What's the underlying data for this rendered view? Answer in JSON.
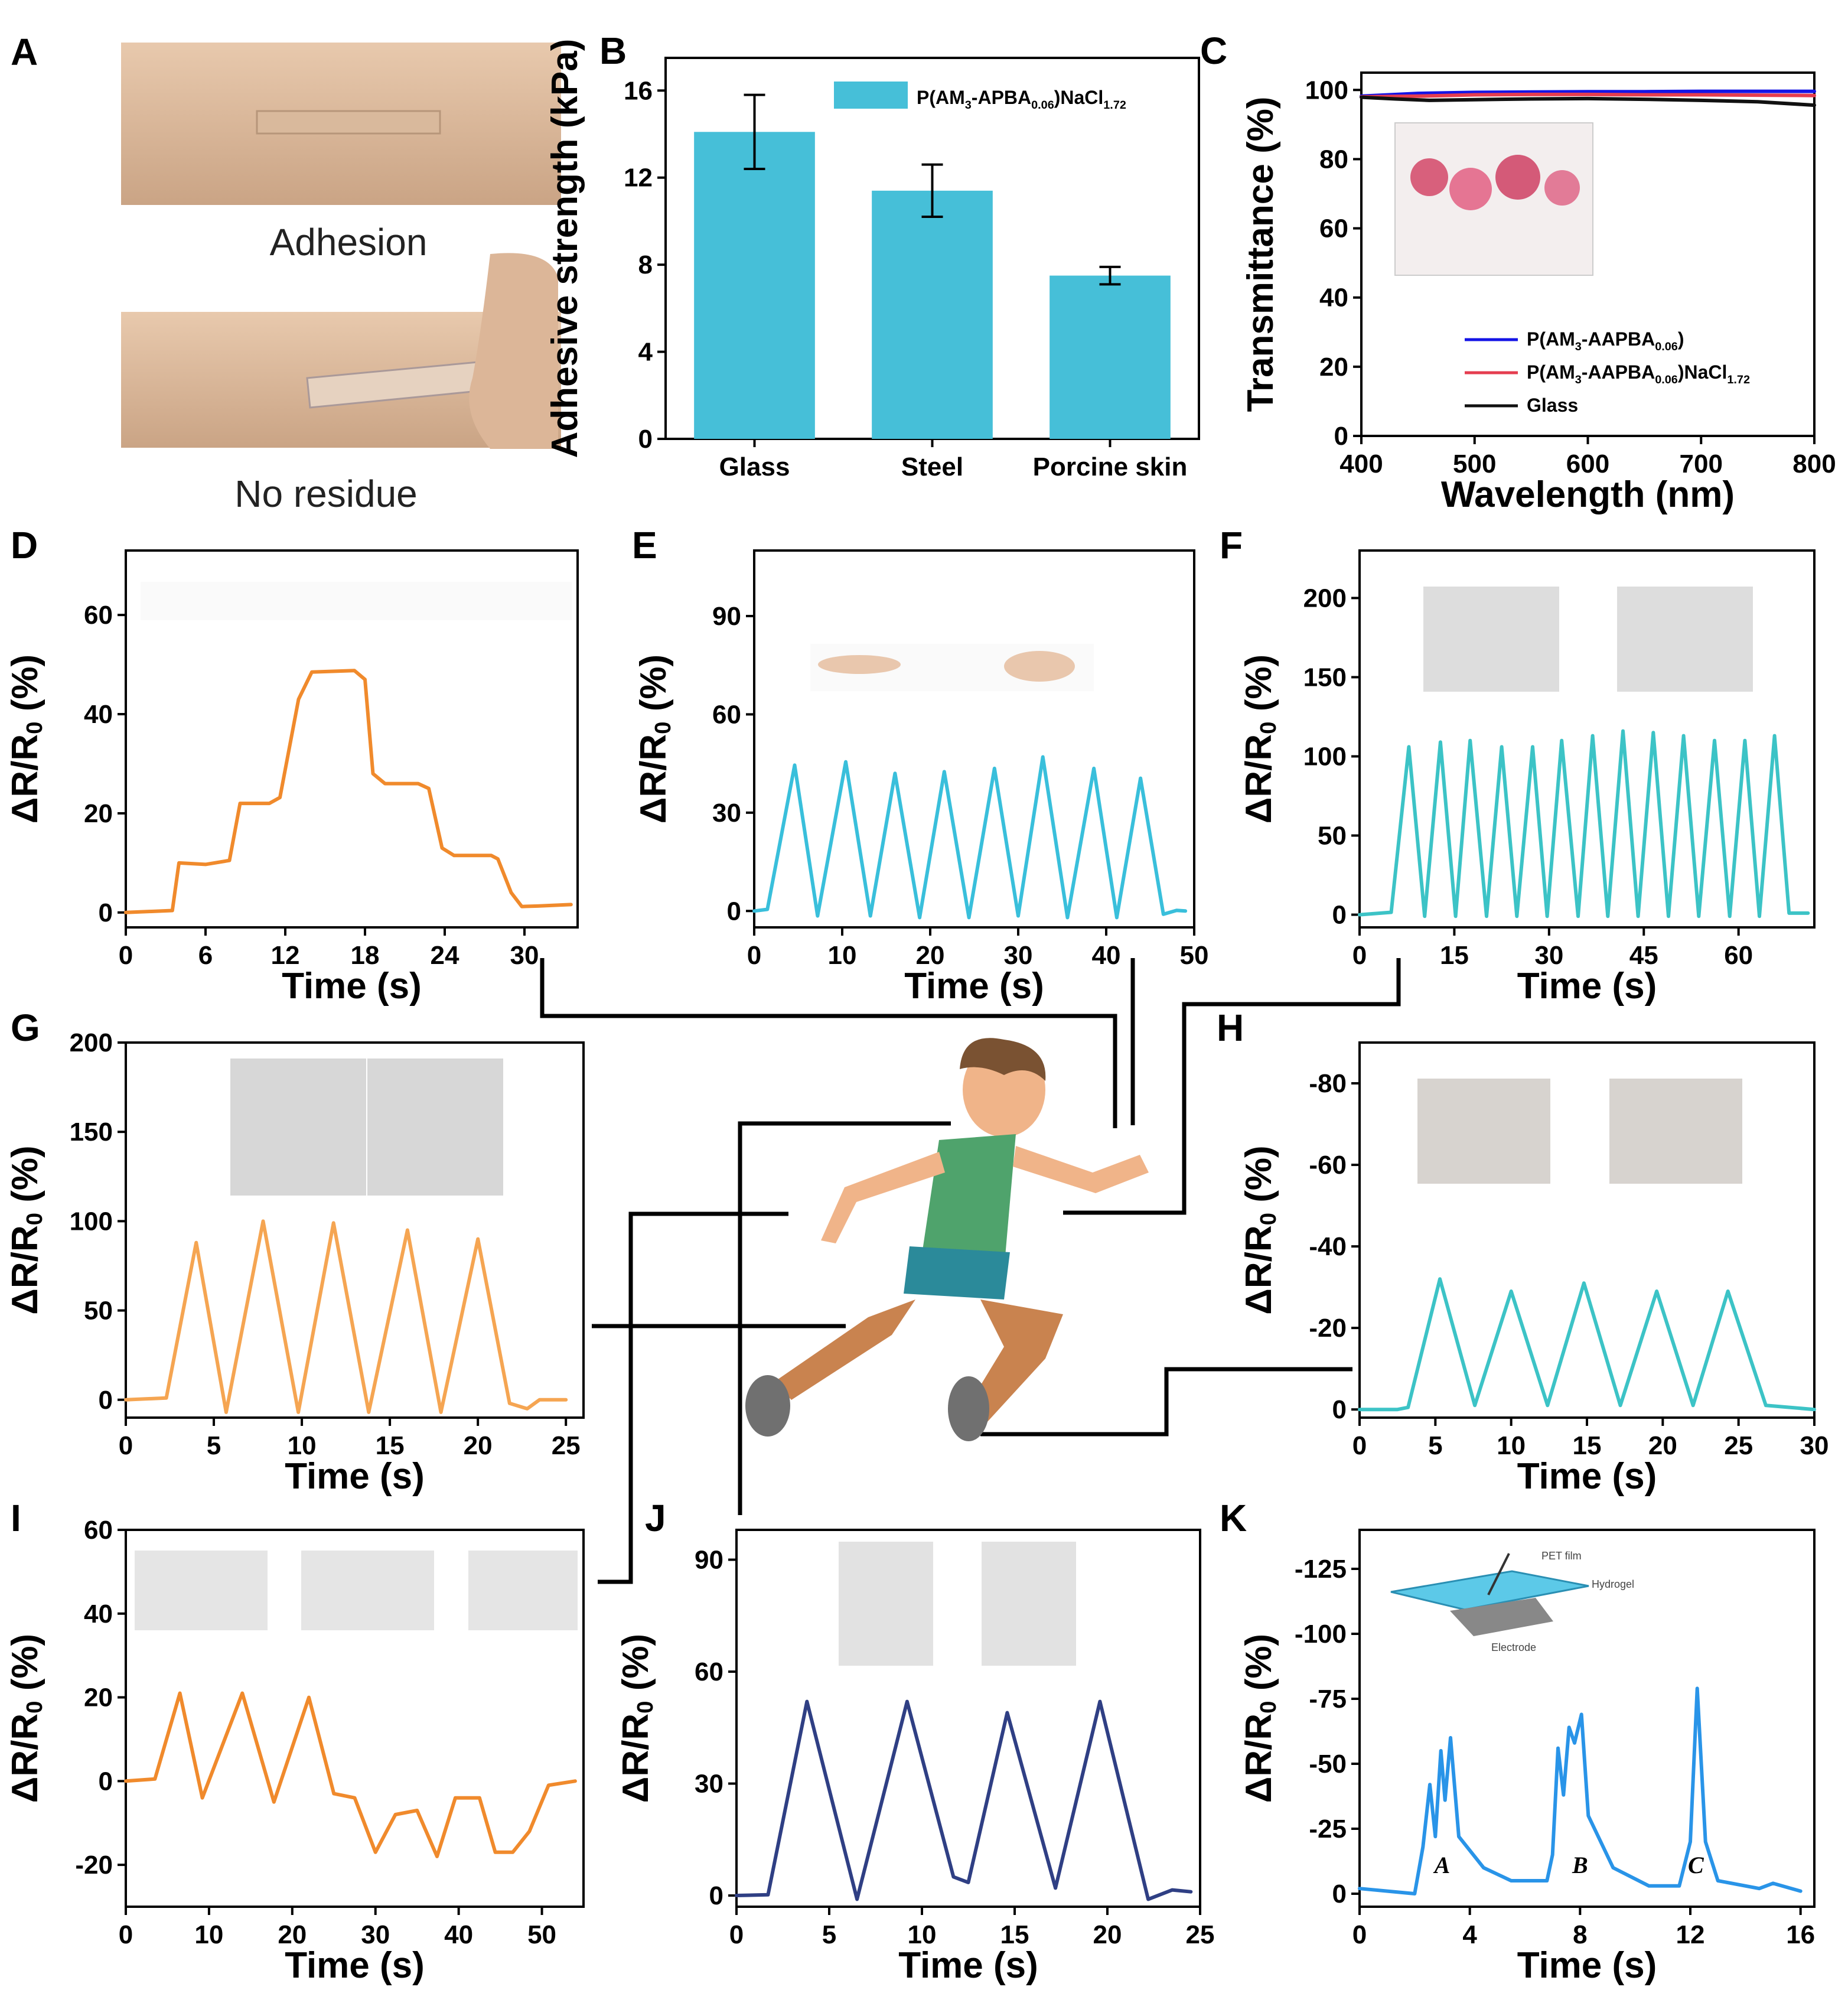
{
  "colors": {
    "orange": "#F08A2C",
    "orange_light": "#F5A552",
    "cyan": "#39BFDB",
    "teal": "#3CC3C6",
    "navy": "#2F3F84",
    "blue": "#2994E8",
    "bar": "#46BFD8",
    "line_blue": "#1414E6",
    "line_red": "#E53D4F",
    "line_black": "#111111"
  },
  "panel_A": {
    "letter": "A",
    "caption_top": "Adhesion",
    "caption_bottom": "No residue"
  },
  "chart_data": [
    {
      "panel": "B",
      "type": "bar",
      "categories": [
        "Glass",
        "Steel",
        "Porcine skin"
      ],
      "values": [
        14.1,
        11.4,
        7.5
      ],
      "errors": [
        1.7,
        1.2,
        0.4
      ],
      "ylabel": "Adhesive strength (kPa)",
      "xlabel": "",
      "ylim": [
        0,
        17.5
      ],
      "yticks": [
        0,
        4,
        8,
        12,
        16
      ],
      "legend": [
        "P(AM",
        "3",
        "-APBA",
        "0.06",
        ")NaCl",
        "1.72"
      ]
    },
    {
      "panel": "C",
      "type": "line",
      "xlabel": "Wavelength (nm)",
      "ylabel": "Transmittance (%)",
      "xlim": [
        400,
        800
      ],
      "ylim": [
        0,
        105
      ],
      "xticks": [
        400,
        500,
        600,
        700,
        800
      ],
      "yticks": [
        0,
        20,
        40,
        60,
        80,
        100
      ],
      "series": [
        {
          "name": "P(AM3-AAPBA0.06)",
          "label": [
            "P(AM",
            "3",
            "-AAPBA",
            "0.06",
            ")",
            ""
          ],
          "color": "#1414E6",
          "points": [
            [
              400,
              98.2
            ],
            [
              450,
              99.0
            ],
            [
              500,
              99.3
            ],
            [
              550,
              99.4
            ],
            [
              600,
              99.5
            ],
            [
              650,
              99.5
            ],
            [
              700,
              99.6
            ],
            [
              750,
              99.6
            ],
            [
              800,
              99.6
            ]
          ]
        },
        {
          "name": "P(AM3-AAPBA0.06)NaCl1.72",
          "label": [
            "P(AM",
            "3",
            "-AAPBA",
            "0.06",
            ")NaCl",
            "1.72"
          ],
          "color": "#E53D4F",
          "points": [
            [
              400,
              98.0
            ],
            [
              450,
              98.2
            ],
            [
              500,
              98.6
            ],
            [
              550,
              98.7
            ],
            [
              600,
              98.7
            ],
            [
              650,
              98.6
            ],
            [
              700,
              98.6
            ],
            [
              750,
              98.5
            ],
            [
              800,
              98.4
            ]
          ]
        },
        {
          "name": "Glass",
          "label": [
            "Glass",
            "",
            "",
            "",
            "",
            ""
          ],
          "color": "#111111",
          "points": [
            [
              400,
              97.9
            ],
            [
              430,
              97.4
            ],
            [
              460,
              97.0
            ],
            [
              500,
              97.2
            ],
            [
              550,
              97.4
            ],
            [
              600,
              97.5
            ],
            [
              650,
              97.3
            ],
            [
              700,
              97.0
            ],
            [
              750,
              96.6
            ],
            [
              800,
              95.6
            ]
          ]
        }
      ]
    },
    {
      "panel": "D",
      "type": "line",
      "xlabel": "Time (s)",
      "ylabel": "ΔR/R0 (%)",
      "xlim": [
        0,
        34
      ],
      "ylim": [
        -3,
        73
      ],
      "xticks": [
        0,
        6,
        12,
        18,
        24,
        30
      ],
      "yticks": [
        0,
        20,
        40,
        60
      ],
      "series": [
        {
          "name": "D",
          "color": "#F08A2C",
          "points": [
            [
              0,
              0
            ],
            [
              3.5,
              0.4
            ],
            [
              4,
              10
            ],
            [
              6,
              9.7
            ],
            [
              7.8,
              10.5
            ],
            [
              8.6,
              22
            ],
            [
              10.8,
              22
            ],
            [
              11.6,
              23.2
            ],
            [
              13,
              43
            ],
            [
              14,
              48.5
            ],
            [
              17.2,
              48.8
            ],
            [
              18,
              47
            ],
            [
              18.6,
              28
            ],
            [
              19.5,
              26
            ],
            [
              22,
              26
            ],
            [
              22.8,
              25
            ],
            [
              23.8,
              13
            ],
            [
              24.7,
              11.5
            ],
            [
              27.5,
              11.5
            ],
            [
              28,
              10.8
            ],
            [
              29,
              4
            ],
            [
              29.8,
              1.2
            ],
            [
              31,
              1.3
            ],
            [
              33.5,
              1.6
            ]
          ]
        }
      ]
    },
    {
      "panel": "E",
      "type": "line",
      "xlabel": "Time (s)",
      "ylabel": "ΔR/R0 (%)",
      "xlim": [
        0,
        50
      ],
      "ylim": [
        -5,
        110
      ],
      "xticks": [
        0,
        10,
        20,
        30,
        40,
        50
      ],
      "yticks": [
        0,
        30,
        60,
        90
      ],
      "series": [
        {
          "name": "E",
          "color": "#39BFDB",
          "points": [
            [
              0,
              0
            ],
            [
              1.5,
              0.5
            ],
            [
              4.6,
              44.5
            ],
            [
              7.2,
              -1.5
            ],
            [
              10.4,
              45.5
            ],
            [
              13.2,
              -1.5
            ],
            [
              16,
              42
            ],
            [
              18.8,
              -2
            ],
            [
              21.6,
              42.5
            ],
            [
              24.4,
              -2
            ],
            [
              27.3,
              43.5
            ],
            [
              30,
              -1.5
            ],
            [
              32.8,
              47
            ],
            [
              35.6,
              -2
            ],
            [
              38.6,
              43.5
            ],
            [
              41.2,
              -2
            ],
            [
              43.9,
              40.5
            ],
            [
              46.5,
              -1
            ],
            [
              48,
              0.2
            ],
            [
              49,
              0
            ]
          ]
        }
      ]
    },
    {
      "panel": "F",
      "type": "line",
      "xlabel": "Time (s)",
      "ylabel": "ΔR/R0 (%)",
      "xlim": [
        0,
        72
      ],
      "ylim": [
        -8,
        230
      ],
      "xticks": [
        0,
        15,
        30,
        45,
        60
      ],
      "yticks": [
        0,
        50,
        100,
        150,
        200
      ],
      "series": [
        {
          "name": "F",
          "color": "#3CC3C6",
          "points": [
            [
              0,
              0
            ],
            [
              5,
              1.5
            ],
            [
              7.8,
              106
            ],
            [
              10.3,
              -1
            ],
            [
              12.8,
              109
            ],
            [
              15.2,
              -1
            ],
            [
              17.5,
              110
            ],
            [
              20.1,
              -1
            ],
            [
              22.5,
              106
            ],
            [
              24.9,
              -1
            ],
            [
              27.4,
              106
            ],
            [
              29.7,
              -1
            ],
            [
              32,
              110
            ],
            [
              34.6,
              -1
            ],
            [
              36.9,
              113
            ],
            [
              39.3,
              -1
            ],
            [
              41.7,
              116
            ],
            [
              44.1,
              -1
            ],
            [
              46.5,
              115
            ],
            [
              48.9,
              -1
            ],
            [
              51.3,
              113
            ],
            [
              53.7,
              -1
            ],
            [
              56.2,
              110
            ],
            [
              58.6,
              -1
            ],
            [
              61,
              110
            ],
            [
              63.3,
              -1
            ],
            [
              65.7,
              113
            ],
            [
              68,
              1
            ],
            [
              71,
              1
            ]
          ]
        }
      ]
    },
    {
      "panel": "G",
      "type": "line",
      "xlabel": "Time (s)",
      "ylabel": "ΔR/R0 (%)",
      "xlim": [
        0,
        26
      ],
      "ylim": [
        -10,
        200
      ],
      "xticks": [
        0,
        5,
        10,
        15,
        20,
        25
      ],
      "yticks": [
        0,
        50,
        100,
        150,
        200
      ],
      "series": [
        {
          "name": "G",
          "color": "#F5A552",
          "points": [
            [
              0,
              0
            ],
            [
              2.3,
              1
            ],
            [
              4,
              88
            ],
            [
              5.7,
              -7
            ],
            [
              7.8,
              100
            ],
            [
              9.8,
              -7
            ],
            [
              11.8,
              99
            ],
            [
              13.8,
              -7
            ],
            [
              16,
              95
            ],
            [
              17.9,
              -7
            ],
            [
              20,
              90
            ],
            [
              21.8,
              -2
            ],
            [
              22.8,
              -5
            ],
            [
              23.5,
              0
            ],
            [
              25,
              0
            ]
          ]
        }
      ]
    },
    {
      "panel": "H",
      "type": "line",
      "xlabel": "Time (s)",
      "ylabel": "ΔR/R0 (%)",
      "xlim": [
        0,
        30
      ],
      "ylim": [
        2,
        -90
      ],
      "xticks": [
        0,
        5,
        10,
        15,
        20,
        25,
        30
      ],
      "yticks": [
        0,
        -20,
        -40,
        -60,
        -80
      ],
      "series": [
        {
          "name": "H",
          "color": "#3CC3C6",
          "points": [
            [
              0,
              0
            ],
            [
              2.5,
              0
            ],
            [
              3.2,
              -0.5
            ],
            [
              5.3,
              -32
            ],
            [
              7.6,
              -1
            ],
            [
              10,
              -29
            ],
            [
              12.4,
              -1
            ],
            [
              14.8,
              -31
            ],
            [
              17.2,
              -1
            ],
            [
              19.6,
              -29
            ],
            [
              22,
              -1
            ],
            [
              24.3,
              -29
            ],
            [
              26.8,
              -1
            ],
            [
              30,
              0
            ]
          ]
        }
      ]
    },
    {
      "panel": "I",
      "type": "line",
      "xlabel": "Time (s)",
      "ylabel": "ΔR/R0 (%)",
      "xlim": [
        0,
        55
      ],
      "ylim": [
        -30,
        60
      ],
      "xticks": [
        0,
        10,
        20,
        30,
        40,
        50
      ],
      "yticks": [
        -20,
        0,
        20,
        40,
        60
      ],
      "series": [
        {
          "name": "I",
          "color": "#F08A2C",
          "points": [
            [
              0,
              0
            ],
            [
              3.5,
              0.5
            ],
            [
              6.5,
              21
            ],
            [
              9.2,
              -4
            ],
            [
              14,
              21
            ],
            [
              17.8,
              -5
            ],
            [
              22,
              20
            ],
            [
              25,
              -3
            ],
            [
              27.5,
              -4
            ],
            [
              30,
              -17
            ],
            [
              32.4,
              -8
            ],
            [
              35,
              -7
            ],
            [
              37.4,
              -18
            ],
            [
              39.6,
              -4
            ],
            [
              42.5,
              -4
            ],
            [
              44.4,
              -17
            ],
            [
              46.5,
              -17
            ],
            [
              48.5,
              -12
            ],
            [
              50.8,
              -1
            ],
            [
              54,
              0
            ]
          ]
        }
      ]
    },
    {
      "panel": "J",
      "type": "line",
      "xlabel": "Time (s)",
      "ylabel": "ΔR/R0 (%)",
      "xlim": [
        0,
        25
      ],
      "ylim": [
        -3,
        98
      ],
      "xticks": [
        0,
        5,
        10,
        15,
        20,
        25
      ],
      "yticks": [
        0,
        30,
        60,
        90
      ],
      "series": [
        {
          "name": "J",
          "color": "#2F3F84",
          "points": [
            [
              0,
              0
            ],
            [
              1.7,
              0.2
            ],
            [
              3.8,
              52
            ],
            [
              6.5,
              -1
            ],
            [
              9.2,
              52
            ],
            [
              11.7,
              5
            ],
            [
              12.5,
              3.5
            ],
            [
              14.6,
              49
            ],
            [
              17.2,
              2
            ],
            [
              19.6,
              52
            ],
            [
              22.2,
              -1
            ],
            [
              23.5,
              1.5
            ],
            [
              24.5,
              1
            ]
          ]
        }
      ]
    },
    {
      "panel": "K",
      "type": "line",
      "xlabel": "Time (s)",
      "ylabel": "ΔR/R0 (%)",
      "xlim": [
        0,
        16.5
      ],
      "ylim": [
        5,
        -140
      ],
      "xticks": [
        0,
        4,
        8,
        12,
        16
      ],
      "yticks": [
        0,
        -25,
        -50,
        -75,
        -100,
        -125
      ],
      "annotations": [
        "A",
        "B",
        "C"
      ],
      "series": [
        {
          "name": "K",
          "color": "#2994E8",
          "points": [
            [
              0,
              -2
            ],
            [
              2,
              0
            ],
            [
              2.3,
              -18
            ],
            [
              2.55,
              -42
            ],
            [
              2.75,
              -22
            ],
            [
              2.95,
              -55
            ],
            [
              3.1,
              -36
            ],
            [
              3.3,
              -60
            ],
            [
              3.6,
              -22
            ],
            [
              4.5,
              -10
            ],
            [
              5.5,
              -5
            ],
            [
              6.8,
              -5
            ],
            [
              7.0,
              -15
            ],
            [
              7.2,
              -56
            ],
            [
              7.4,
              -38
            ],
            [
              7.6,
              -64
            ],
            [
              7.8,
              -58
            ],
            [
              8.05,
              -69
            ],
            [
              8.3,
              -30
            ],
            [
              9.2,
              -10
            ],
            [
              10.5,
              -3
            ],
            [
              11.6,
              -3
            ],
            [
              12.0,
              -20
            ],
            [
              12.25,
              -79
            ],
            [
              12.55,
              -20
            ],
            [
              13,
              -5
            ],
            [
              14.5,
              -2
            ],
            [
              15,
              -4
            ],
            [
              16,
              -1
            ]
          ]
        }
      ]
    }
  ],
  "panel_C_inset": {
    "caption": ""
  },
  "panel_K_inset": {
    "pet": "PET film",
    "hydrogel": "Hydrogel",
    "electrode": "Electrode"
  }
}
